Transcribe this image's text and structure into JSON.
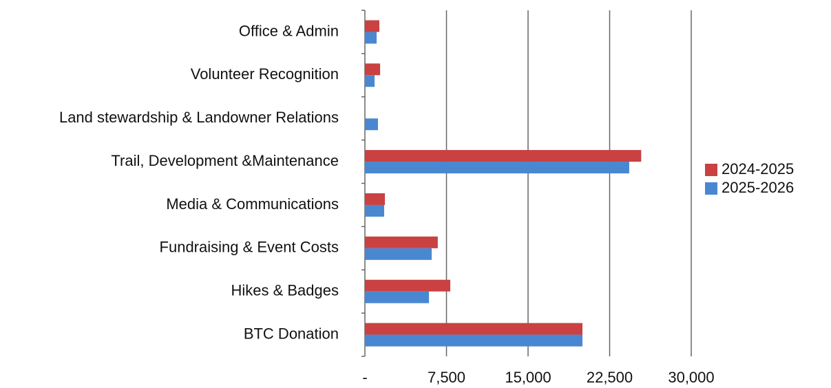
{
  "chart_data": {
    "type": "hbar",
    "categories": [
      "Office & Admin",
      "Volunteer Recognition",
      "Land stewardship & Landowner Relations",
      "Trail, Development &Maintenance",
      "Media & Communications",
      "Fundraising & Event Costs",
      "Hikes & Badges",
      "BTC Donation"
    ],
    "series": [
      {
        "name": "2024-2025",
        "color": "#c94141",
        "values": [
          1330,
          1400,
          0,
          25400,
          1840,
          6700,
          7850,
          20000
        ]
      },
      {
        "name": "2025-2026",
        "color": "#4a87d1",
        "values": [
          1080,
          890,
          1200,
          24300,
          1770,
          6140,
          5890,
          20000
        ]
      }
    ],
    "xlim": [
      0,
      30000
    ],
    "xticks": [
      {
        "value": 0,
        "label": "-"
      },
      {
        "value": 7500,
        "label": "7,500"
      },
      {
        "value": 15000,
        "label": "15,000"
      },
      {
        "value": 22500,
        "label": "22,500"
      },
      {
        "value": 30000,
        "label": "30,000"
      }
    ],
    "grid": true,
    "legend": "right"
  }
}
